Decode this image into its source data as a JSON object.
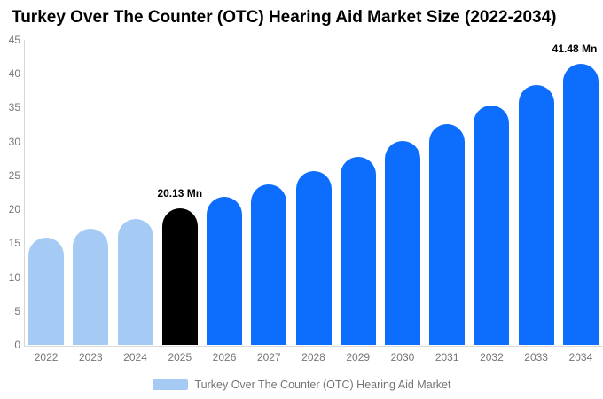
{
  "title": "Turkey Over The Counter (OTC) Hearing Aid Market Size (2022-2034)",
  "legend": {
    "label": "Turkey Over The Counter (OTC) Hearing Aid Market",
    "swatch_color": "#a5cbf5"
  },
  "colors": {
    "historical_bar": "#a5cbf5",
    "highlight_bar": "#000000",
    "forecast_bar": "#0d6efd",
    "axis_line": "#d6d6d6",
    "axis_text": "#757575",
    "title_text": "#000000",
    "data_label_text": "#000000"
  },
  "chart_data": {
    "type": "bar",
    "title": "Turkey Over The Counter (OTC) Hearing Aid Market Size (2022-2034)",
    "categories": [
      "2022",
      "2023",
      "2024",
      "2025",
      "2026",
      "2027",
      "2028",
      "2029",
      "2030",
      "2031",
      "2032",
      "2033",
      "2034"
    ],
    "series": [
      {
        "name": "Turkey Over The Counter (OTC) Hearing Aid Market",
        "values": [
          15.81,
          17.13,
          18.57,
          20.13,
          21.81,
          23.64,
          25.62,
          27.76,
          30.09,
          32.61,
          35.34,
          38.3,
          41.48
        ]
      }
    ],
    "bar_colors": [
      "#a5cbf5",
      "#a5cbf5",
      "#a5cbf5",
      "#000000",
      "#0d6efd",
      "#0d6efd",
      "#0d6efd",
      "#0d6efd",
      "#0d6efd",
      "#0d6efd",
      "#0d6efd",
      "#0d6efd",
      "#0d6efd"
    ],
    "data_labels": [
      {
        "category": "2025",
        "text": "20.13 Mn"
      },
      {
        "category": "2034",
        "text": "41.48 Mn"
      }
    ],
    "unit": "Mn",
    "xlabel": "",
    "ylabel": "",
    "ylim": [
      0,
      45
    ],
    "yticks": [
      0,
      5,
      10,
      15,
      20,
      25,
      30,
      35,
      40,
      45
    ],
    "grid": false,
    "legend_position": "bottom"
  }
}
